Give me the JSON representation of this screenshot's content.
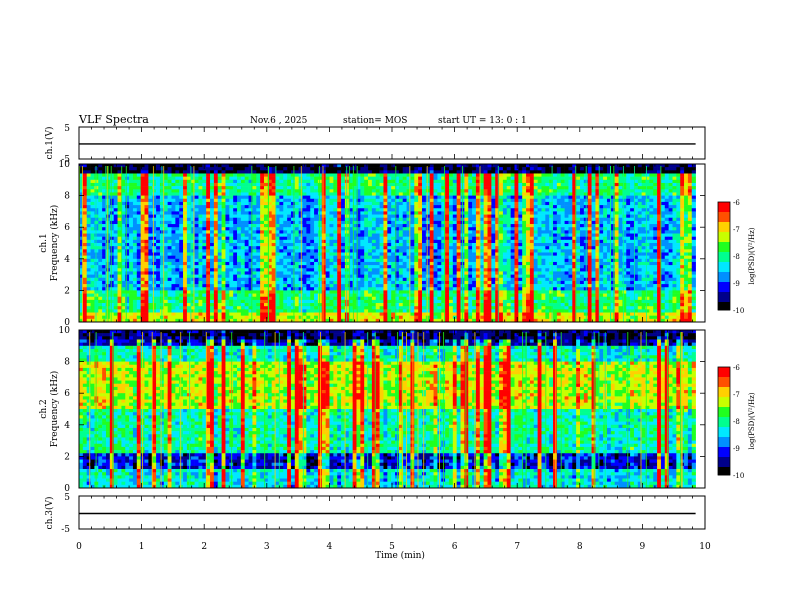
{
  "header": {
    "title": "VLF Spectra",
    "date": "Nov.6 , 2025",
    "station": "station= MOS",
    "start": "start UT = 13: 0 : 1"
  },
  "colors": {
    "spectrogram_palette": [
      "#000000",
      "#00008b",
      "#0000ff",
      "#0090ff",
      "#00e8ff",
      "#00ff90",
      "#20ff20",
      "#c8ff00",
      "#ffd000",
      "#ff5000",
      "#ff0000",
      "#ffffff"
    ]
  },
  "chart_data": [
    {
      "type": "line",
      "name": "ch1-voltage",
      "ylabel": "ch.1(V)",
      "ylim": [
        -5,
        5
      ],
      "yticks": [
        "5",
        "-5"
      ],
      "xlim": [
        0,
        10
      ],
      "level": -0.3,
      "grid": false
    },
    {
      "type": "heatmap",
      "name": "ch1-spectrogram",
      "ylabel": "ch.1\nFrequency (kHz)",
      "ylim": [
        0,
        10
      ],
      "yticks": [
        "0",
        "2",
        "4",
        "6",
        "8",
        "10"
      ],
      "xlim": [
        0,
        9.85
      ],
      "colorbar": {
        "label": "log(PSD)(V²/Hz)",
        "range": [
          -10,
          -6
        ],
        "ticks": [
          "-6",
          "-7",
          "-8",
          "-9",
          "-10"
        ]
      },
      "bands": [
        {
          "from": 0,
          "to": 0.6,
          "level": 0.62
        },
        {
          "from": 0.6,
          "to": 2.0,
          "level": 0.45
        },
        {
          "from": 2.0,
          "to": 8.0,
          "level": 0.28
        },
        {
          "from": 8.0,
          "to": 9.3,
          "level": 0.44
        },
        {
          "from": 9.3,
          "to": 10,
          "level": 0.05
        }
      ]
    },
    {
      "type": "heatmap",
      "name": "ch2-spectrogram",
      "ylabel": "ch.2\nFrequency (kHz)",
      "ylim": [
        0,
        10
      ],
      "yticks": [
        "0",
        "2",
        "4",
        "6",
        "8",
        "10"
      ],
      "xlim": [
        0,
        9.85
      ],
      "colorbar": {
        "label": "log(PSD)(V²/Hz)",
        "range": [
          -10,
          -6
        ],
        "ticks": [
          "-6",
          "-7",
          "-8",
          "-9",
          "-10"
        ]
      },
      "bands": [
        {
          "from": 0,
          "to": 1.2,
          "level": 0.35
        },
        {
          "from": 1.2,
          "to": 2.2,
          "level": 0.12
        },
        {
          "from": 2.2,
          "to": 5.0,
          "level": 0.4
        },
        {
          "from": 5.0,
          "to": 8.0,
          "level": 0.6
        },
        {
          "from": 8.0,
          "to": 9.0,
          "level": 0.38
        },
        {
          "from": 9.0,
          "to": 10,
          "level": 0.08
        }
      ]
    },
    {
      "type": "line",
      "name": "ch3-voltage",
      "ylabel": "ch.3(V)",
      "ylim": [
        -5,
        5
      ],
      "yticks": [
        "5",
        "-5"
      ],
      "xlim": [
        0,
        10
      ],
      "level": -0.3,
      "grid": false
    }
  ],
  "xaxis": {
    "label": "Time (min)",
    "ticks": [
      "0",
      "1",
      "2",
      "3",
      "4",
      "5",
      "6",
      "7",
      "8",
      "9",
      "10"
    ]
  }
}
